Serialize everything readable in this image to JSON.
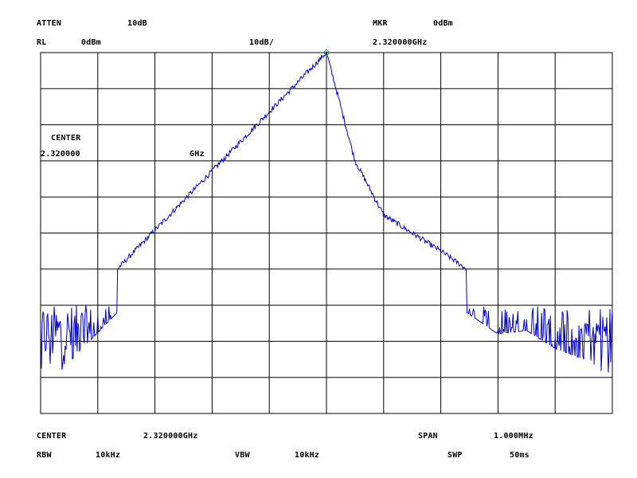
{
  "header": {
    "atten_label": "ATTEN",
    "atten_value": "10dB",
    "marker_label": "MKR",
    "marker_value": "0dBm",
    "ref_level_label": "RL",
    "ref_level_value": "0dBm",
    "scale_value": "10dB/",
    "marker_freq": "2.320000GHz"
  },
  "overlay": {
    "center_label": "CENTER",
    "center_value": "2.320000",
    "center_unit": "GHz"
  },
  "footer": {
    "center_label": "CENTER",
    "center_value": "2.320000GHz",
    "span_label": "SPAN",
    "span_value": "1.000MHz",
    "rbw_label": "RBW",
    "rbw_value": "10kHz",
    "vbw_label": "VBW",
    "vbw_value": "10kHz",
    "sweep_label": "SWP",
    "sweep_value": "50ms"
  },
  "colors": {
    "trace": "#0000cc",
    "marker": "#22aa44",
    "grid": "#000000",
    "background": "#ffffff"
  },
  "chart_data": {
    "type": "line",
    "x_unit": "GHz",
    "y_unit": "dBm",
    "xlim": [
      2.3195,
      2.3205
    ],
    "ylim": [
      -100,
      0
    ],
    "grid": true,
    "grid_divisions": {
      "x": 10,
      "y": 10
    },
    "marker": {
      "x": 2.32,
      "y": 0,
      "symbol": "diamond"
    },
    "noise_floor": [
      -70,
      -92
    ],
    "series": [
      {
        "x": [
          2.3195,
          2.32,
          2.32005,
          2.3201,
          2.3202,
          2.3203,
          2.32035,
          2.3204,
          2.32045,
          2.3205
        ],
        "values": [
          -82,
          0,
          -30,
          -45,
          -55,
          -66,
          -65,
          -70,
          -73,
          -81
        ]
      }
    ]
  }
}
